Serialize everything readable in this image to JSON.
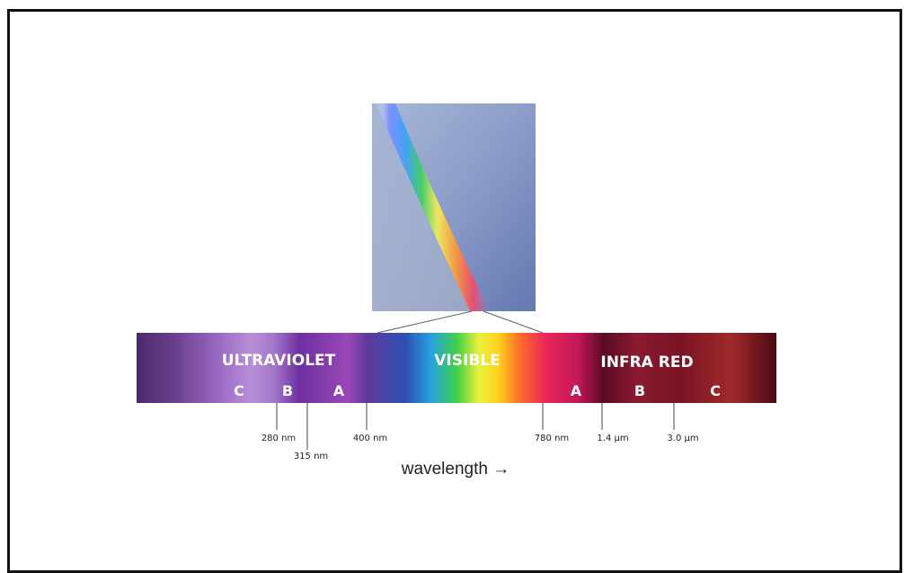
{
  "region_labels": {
    "ultraviolet": "ULTRAVIOLET",
    "visible": "VISIBLE",
    "infrared": "INFRA RED"
  },
  "subband_labels": {
    "uv_c": "C",
    "uv_b": "B",
    "uv_a": "A",
    "ir_a": "A",
    "ir_b": "B",
    "ir_c": "C"
  },
  "tick_labels": {
    "t280": "280 nm",
    "t315": "315 nm",
    "t400": "400 nm",
    "t780": "780 nm",
    "t14": "1.4 µm",
    "t30": "3.0 µm"
  },
  "axis_label": "wavelength →",
  "colors": {
    "frame": "#111111",
    "prism_top": "#9fb0d2",
    "prism_bottom": "#6a7fb4",
    "ultraviolet": "#8a4fb0",
    "infrared": "#6a0a1a"
  }
}
